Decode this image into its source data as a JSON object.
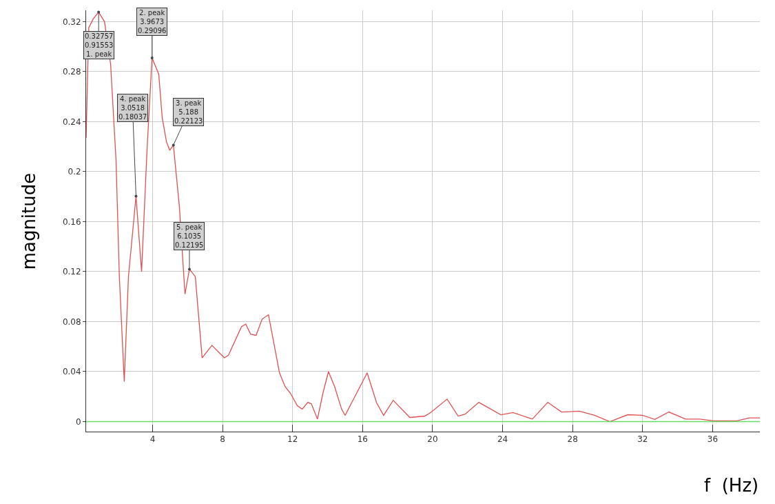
{
  "chart_data": {
    "type": "line",
    "xlabel": "f  (Hz)",
    "ylabel": "magnitude",
    "x": [
      0.2,
      0.35,
      0.6,
      0.91553,
      1.25,
      1.6,
      1.91,
      2.1,
      2.38,
      2.62,
      3.0518,
      3.37,
      3.68,
      3.9673,
      4.35,
      4.55,
      4.79,
      4.98,
      5.188,
      5.53,
      5.85,
      6.1035,
      6.44,
      6.83,
      7.39,
      8.1,
      8.33,
      9.08,
      9.32,
      9.6,
      9.91,
      10.26,
      10.62,
      11.25,
      11.57,
      11.88,
      12.27,
      12.55,
      12.87,
      13.07,
      13.42,
      13.73,
      14.05,
      14.4,
      14.8,
      15.0,
      16.26,
      16.8,
      17.2,
      17.75,
      18.7,
      19.55,
      19.88,
      20.83,
      21.46,
      21.86,
      22.64,
      23.9,
      24.6,
      25.7,
      26.58,
      27.37,
      28.4,
      29.26,
      30.13,
      31.15,
      32.0,
      32.7,
      33.5,
      34.46,
      35.25,
      36.04,
      37.4,
      38.1,
      38.7
    ],
    "series": [
      {
        "color": "#e05050",
        "values": [
          0.227,
          0.315,
          0.322,
          0.32757,
          0.32,
          0.286,
          0.209,
          0.116,
          0.032,
          0.116,
          0.18037,
          0.12,
          0.217,
          0.29096,
          0.278,
          0.243,
          0.224,
          0.217,
          0.22123,
          0.172,
          0.102,
          0.12195,
          0.116,
          0.051,
          0.061,
          0.051,
          0.053,
          0.076,
          0.078,
          0.07,
          0.069,
          0.082,
          0.0855,
          0.039,
          0.028,
          0.0226,
          0.0127,
          0.01,
          0.0154,
          0.0143,
          0.002,
          0.0226,
          0.04,
          0.028,
          0.01,
          0.005,
          0.039,
          0.015,
          0.005,
          0.017,
          0.0033,
          0.0044,
          0.0072,
          0.018,
          0.0044,
          0.006,
          0.0154,
          0.0055,
          0.0072,
          0.002,
          0.0154,
          0.0077,
          0.0083,
          0.005,
          0.0,
          0.0055,
          0.005,
          0.0017,
          0.0077,
          0.002,
          0.002,
          0.0006,
          0.0006,
          0.003,
          0.003
        ]
      }
    ],
    "xlim": [
      0.2,
      38.7
    ],
    "xticks": [
      4,
      8,
      12,
      16,
      20,
      24,
      28,
      32,
      36
    ],
    "ylim": [
      -0.008,
      0.329
    ],
    "yticks": [
      0,
      0.04,
      0.08,
      0.12,
      0.16,
      0.2,
      0.24,
      0.28,
      0.32
    ],
    "grid": true,
    "marker": "none",
    "line_style": "solid",
    "ref_lines": [
      {
        "axis": "y",
        "value": 0,
        "color": "#66dd66"
      }
    ],
    "annotations": [
      {
        "text": "0.32757\n0.91553\n1. peak",
        "x": 0.91553,
        "y": 0.32757
      },
      {
        "text": "2. peak\n3.9673\n0.29096",
        "x": 3.9673,
        "y": 0.29096
      },
      {
        "text": "3. peak\n5.188\n0.22123",
        "x": 5.188,
        "y": 0.22123
      },
      {
        "text": "4. peak\n3.0518\n0.18037",
        "x": 3.0518,
        "y": 0.18037
      },
      {
        "text": "5. peak\n6.1035\n0.12195",
        "x": 6.1035,
        "y": 0.12195
      }
    ]
  }
}
